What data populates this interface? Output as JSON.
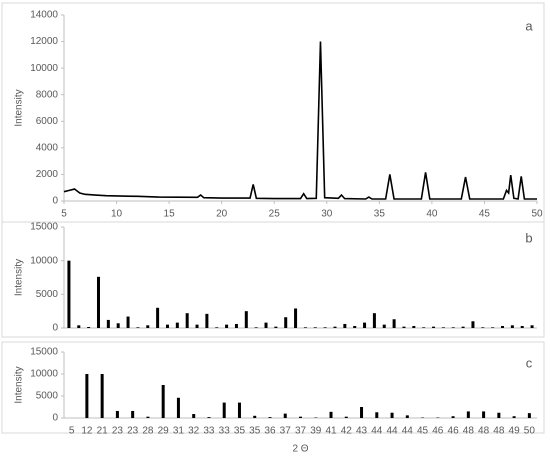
{
  "chart_data": [
    {
      "type": "line",
      "annotation": "a",
      "ylabel": "Intensity",
      "color": "#000000",
      "x": [
        5,
        5.5,
        6,
        6.5,
        7,
        8,
        9,
        10,
        12,
        14,
        17.7,
        18,
        18.3,
        20,
        22.7,
        23,
        23.3,
        25,
        27.5,
        27.8,
        28.1,
        29,
        29.4,
        29.8,
        31.1,
        31.4,
        31.7,
        33.7,
        34,
        34.3,
        35.6,
        36,
        36.4,
        39,
        39.4,
        39.8,
        42.8,
        43.2,
        43.6,
        46.8,
        47.1,
        47.3,
        47.5,
        47.8,
        48.2,
        48.5,
        48.8,
        50
      ],
      "values": [
        700,
        800,
        900,
        600,
        500,
        450,
        400,
        380,
        350,
        300,
        280,
        450,
        250,
        220,
        220,
        1250,
        200,
        180,
        180,
        550,
        180,
        200,
        12000,
        250,
        200,
        450,
        180,
        150,
        300,
        150,
        150,
        2000,
        150,
        150,
        2150,
        150,
        150,
        1800,
        150,
        150,
        800,
        600,
        1950,
        200,
        150,
        1850,
        150,
        150
      ],
      "xlim": [
        5,
        50
      ],
      "xticks": [
        5,
        10,
        15,
        20,
        25,
        30,
        35,
        40,
        45,
        50
      ],
      "ylim": [
        0,
        14000
      ],
      "yticks": [
        0,
        2000,
        4000,
        6000,
        8000,
        10000,
        12000,
        14000
      ]
    },
    {
      "type": "bar",
      "annotation": "b",
      "ylabel": "Intensity",
      "color": "#000000",
      "values": [
        10000,
        400,
        150,
        7600,
        1200,
        700,
        1700,
        100,
        400,
        3000,
        500,
        800,
        2200,
        500,
        2100,
        100,
        500,
        600,
        2500,
        100,
        800,
        200,
        1600,
        2900,
        100,
        100,
        100,
        200,
        600,
        300,
        800,
        2200,
        500,
        1300,
        200,
        300,
        100,
        200,
        100,
        100,
        200,
        1000,
        100,
        100,
        300,
        400,
        300,
        400
      ],
      "ylim": [
        0,
        15000
      ],
      "yticks": [
        0,
        5000,
        10000,
        15000
      ]
    },
    {
      "type": "bar",
      "annotation": "c",
      "ylabel": "Intensity",
      "xlabel": "2 Θ",
      "color": "#000000",
      "categories": [
        "5",
        "12",
        "21",
        "23",
        "23",
        "28",
        "29",
        "31",
        "32",
        "33",
        "33",
        "35",
        "35",
        "36",
        "37",
        "37",
        "39",
        "41",
        "42",
        "43",
        "44",
        "44",
        "44",
        "45",
        "46",
        "46",
        "48",
        "48",
        "48",
        "49",
        "50"
      ],
      "values": [
        0,
        10000,
        10000,
        1600,
        1600,
        300,
        7500,
        4600,
        900,
        200,
        3500,
        3500,
        500,
        200,
        1000,
        300,
        100,
        1400,
        300,
        2500,
        1300,
        1200,
        600,
        100,
        100,
        400,
        1500,
        1500,
        1200,
        400,
        1100
      ],
      "ylim": [
        0,
        15000
      ],
      "yticks": [
        0,
        5000,
        10000,
        15000
      ]
    }
  ]
}
